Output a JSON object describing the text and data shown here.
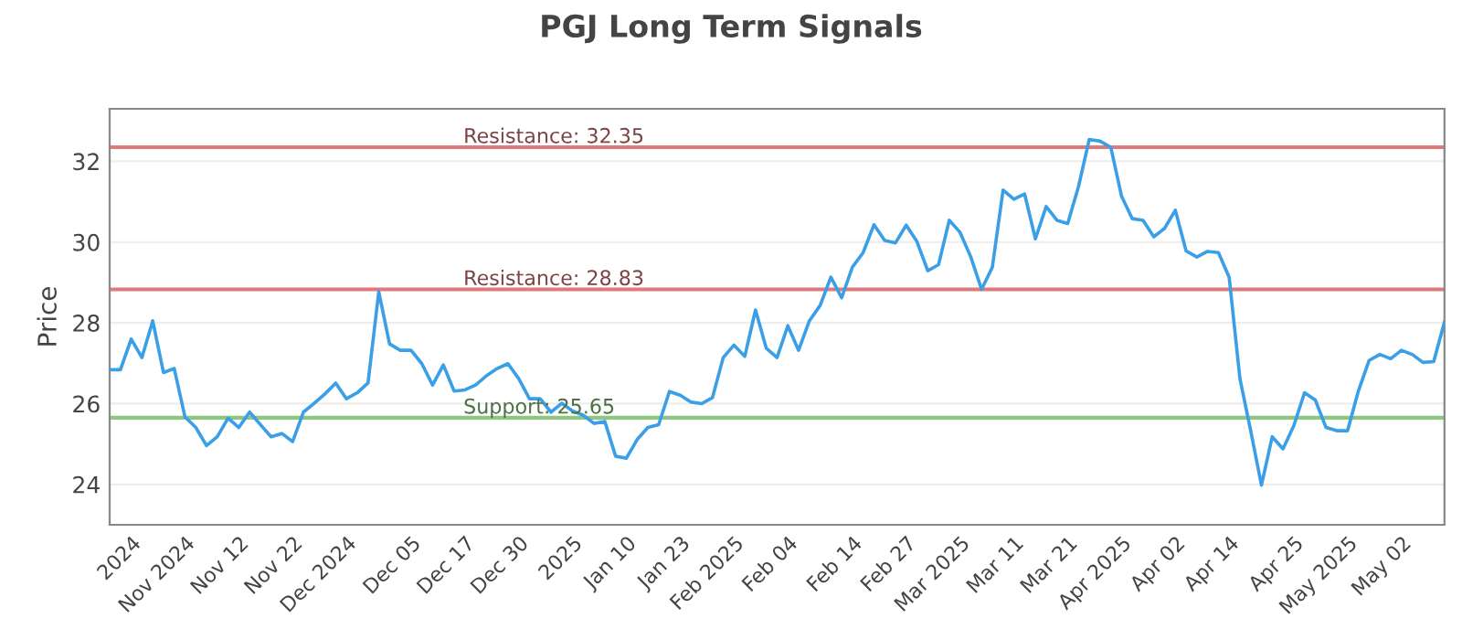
{
  "chart_data": {
    "type": "line",
    "title": "PGJ Long Term Signals",
    "ylabel": "Price",
    "categories": [
      null,
      null,
      "2024",
      null,
      null,
      null,
      null,
      "Nov 2024",
      null,
      null,
      null,
      null,
      "Nov 12",
      null,
      null,
      null,
      null,
      "Nov 22",
      null,
      null,
      null,
      null,
      "Dec 2024",
      null,
      null,
      null,
      null,
      null,
      "Dec 05",
      null,
      null,
      null,
      null,
      "Dec 17",
      null,
      null,
      null,
      null,
      "Dec 30",
      null,
      null,
      null,
      null,
      "2025",
      null,
      null,
      null,
      null,
      "Jan 10",
      null,
      null,
      null,
      null,
      "Jan 23",
      null,
      null,
      null,
      null,
      "Feb 2025",
      null,
      null,
      null,
      null,
      "Feb 04",
      null,
      null,
      null,
      null,
      null,
      "Feb 14",
      null,
      null,
      null,
      null,
      "Feb 27",
      null,
      null,
      null,
      null,
      "Mar 2025",
      null,
      null,
      null,
      null,
      "Mar 11",
      null,
      null,
      null,
      null,
      "Mar 21",
      null,
      null,
      null,
      null,
      "Apr 2025",
      null,
      null,
      null,
      null,
      "Apr 02",
      null,
      null,
      null,
      null,
      "Apr 14",
      null,
      null,
      null,
      null,
      null,
      "Apr 25",
      null,
      null,
      null,
      null,
      "May 2025",
      null,
      null,
      null,
      null,
      "May 02",
      null,
      null,
      null,
      null
    ],
    "series": [
      {
        "color": "#3a9fe6",
        "values": [
          26.84,
          26.84,
          27.6,
          27.14,
          28.05,
          26.77,
          26.87,
          25.67,
          25.41,
          24.96,
          25.18,
          25.64,
          25.41,
          25.79,
          25.48,
          25.18,
          25.26,
          25.06,
          25.79,
          26.01,
          26.24,
          26.51,
          26.12,
          26.27,
          26.51,
          28.77,
          27.48,
          27.32,
          27.32,
          26.99,
          26.46,
          26.96,
          26.31,
          26.34,
          26.46,
          26.69,
          26.87,
          26.99,
          26.62,
          26.12,
          26.12,
          25.79,
          26.01,
          25.82,
          25.71,
          25.51,
          25.56,
          24.7,
          24.65,
          25.11,
          25.41,
          25.48,
          26.3,
          26.21,
          26.04,
          26.0,
          26.15,
          27.14,
          27.45,
          27.17,
          28.32,
          27.37,
          27.14,
          27.93,
          27.32,
          28.05,
          28.43,
          29.13,
          28.62,
          29.38,
          29.74,
          30.43,
          30.04,
          29.98,
          30.42,
          30.01,
          29.29,
          29.44,
          30.54,
          30.24,
          29.63,
          28.83,
          29.38,
          31.29,
          31.06,
          31.19,
          30.08,
          30.88,
          30.54,
          30.46,
          31.37,
          32.54,
          32.5,
          32.35,
          31.14,
          30.58,
          30.54,
          30.13,
          30.34,
          30.79,
          29.78,
          29.63,
          29.77,
          29.74,
          29.13,
          26.62,
          25.33,
          23.98,
          25.18,
          24.88,
          25.45,
          26.27,
          26.09,
          25.41,
          25.33,
          25.33,
          26.31,
          27.07,
          27.22,
          27.11,
          27.32,
          27.22,
          27.02,
          27.04,
          28.02
        ]
      }
    ],
    "ylim": [
      23.0,
      33.3
    ],
    "yticks": [
      24,
      26,
      28,
      30,
      32
    ],
    "ref_lines": [
      {
        "axis": "y",
        "value": 32.35,
        "label": "Resistance: 32.35",
        "color": "#e07a7a"
      },
      {
        "axis": "y",
        "value": 28.83,
        "label": "Resistance: 28.83",
        "color": "#e07a7a"
      },
      {
        "axis": "y",
        "value": 25.65,
        "label": "Support: 25.65",
        "color": "#8cc97e"
      }
    ],
    "grid": "y",
    "marker": "none",
    "line_style": "solid"
  }
}
